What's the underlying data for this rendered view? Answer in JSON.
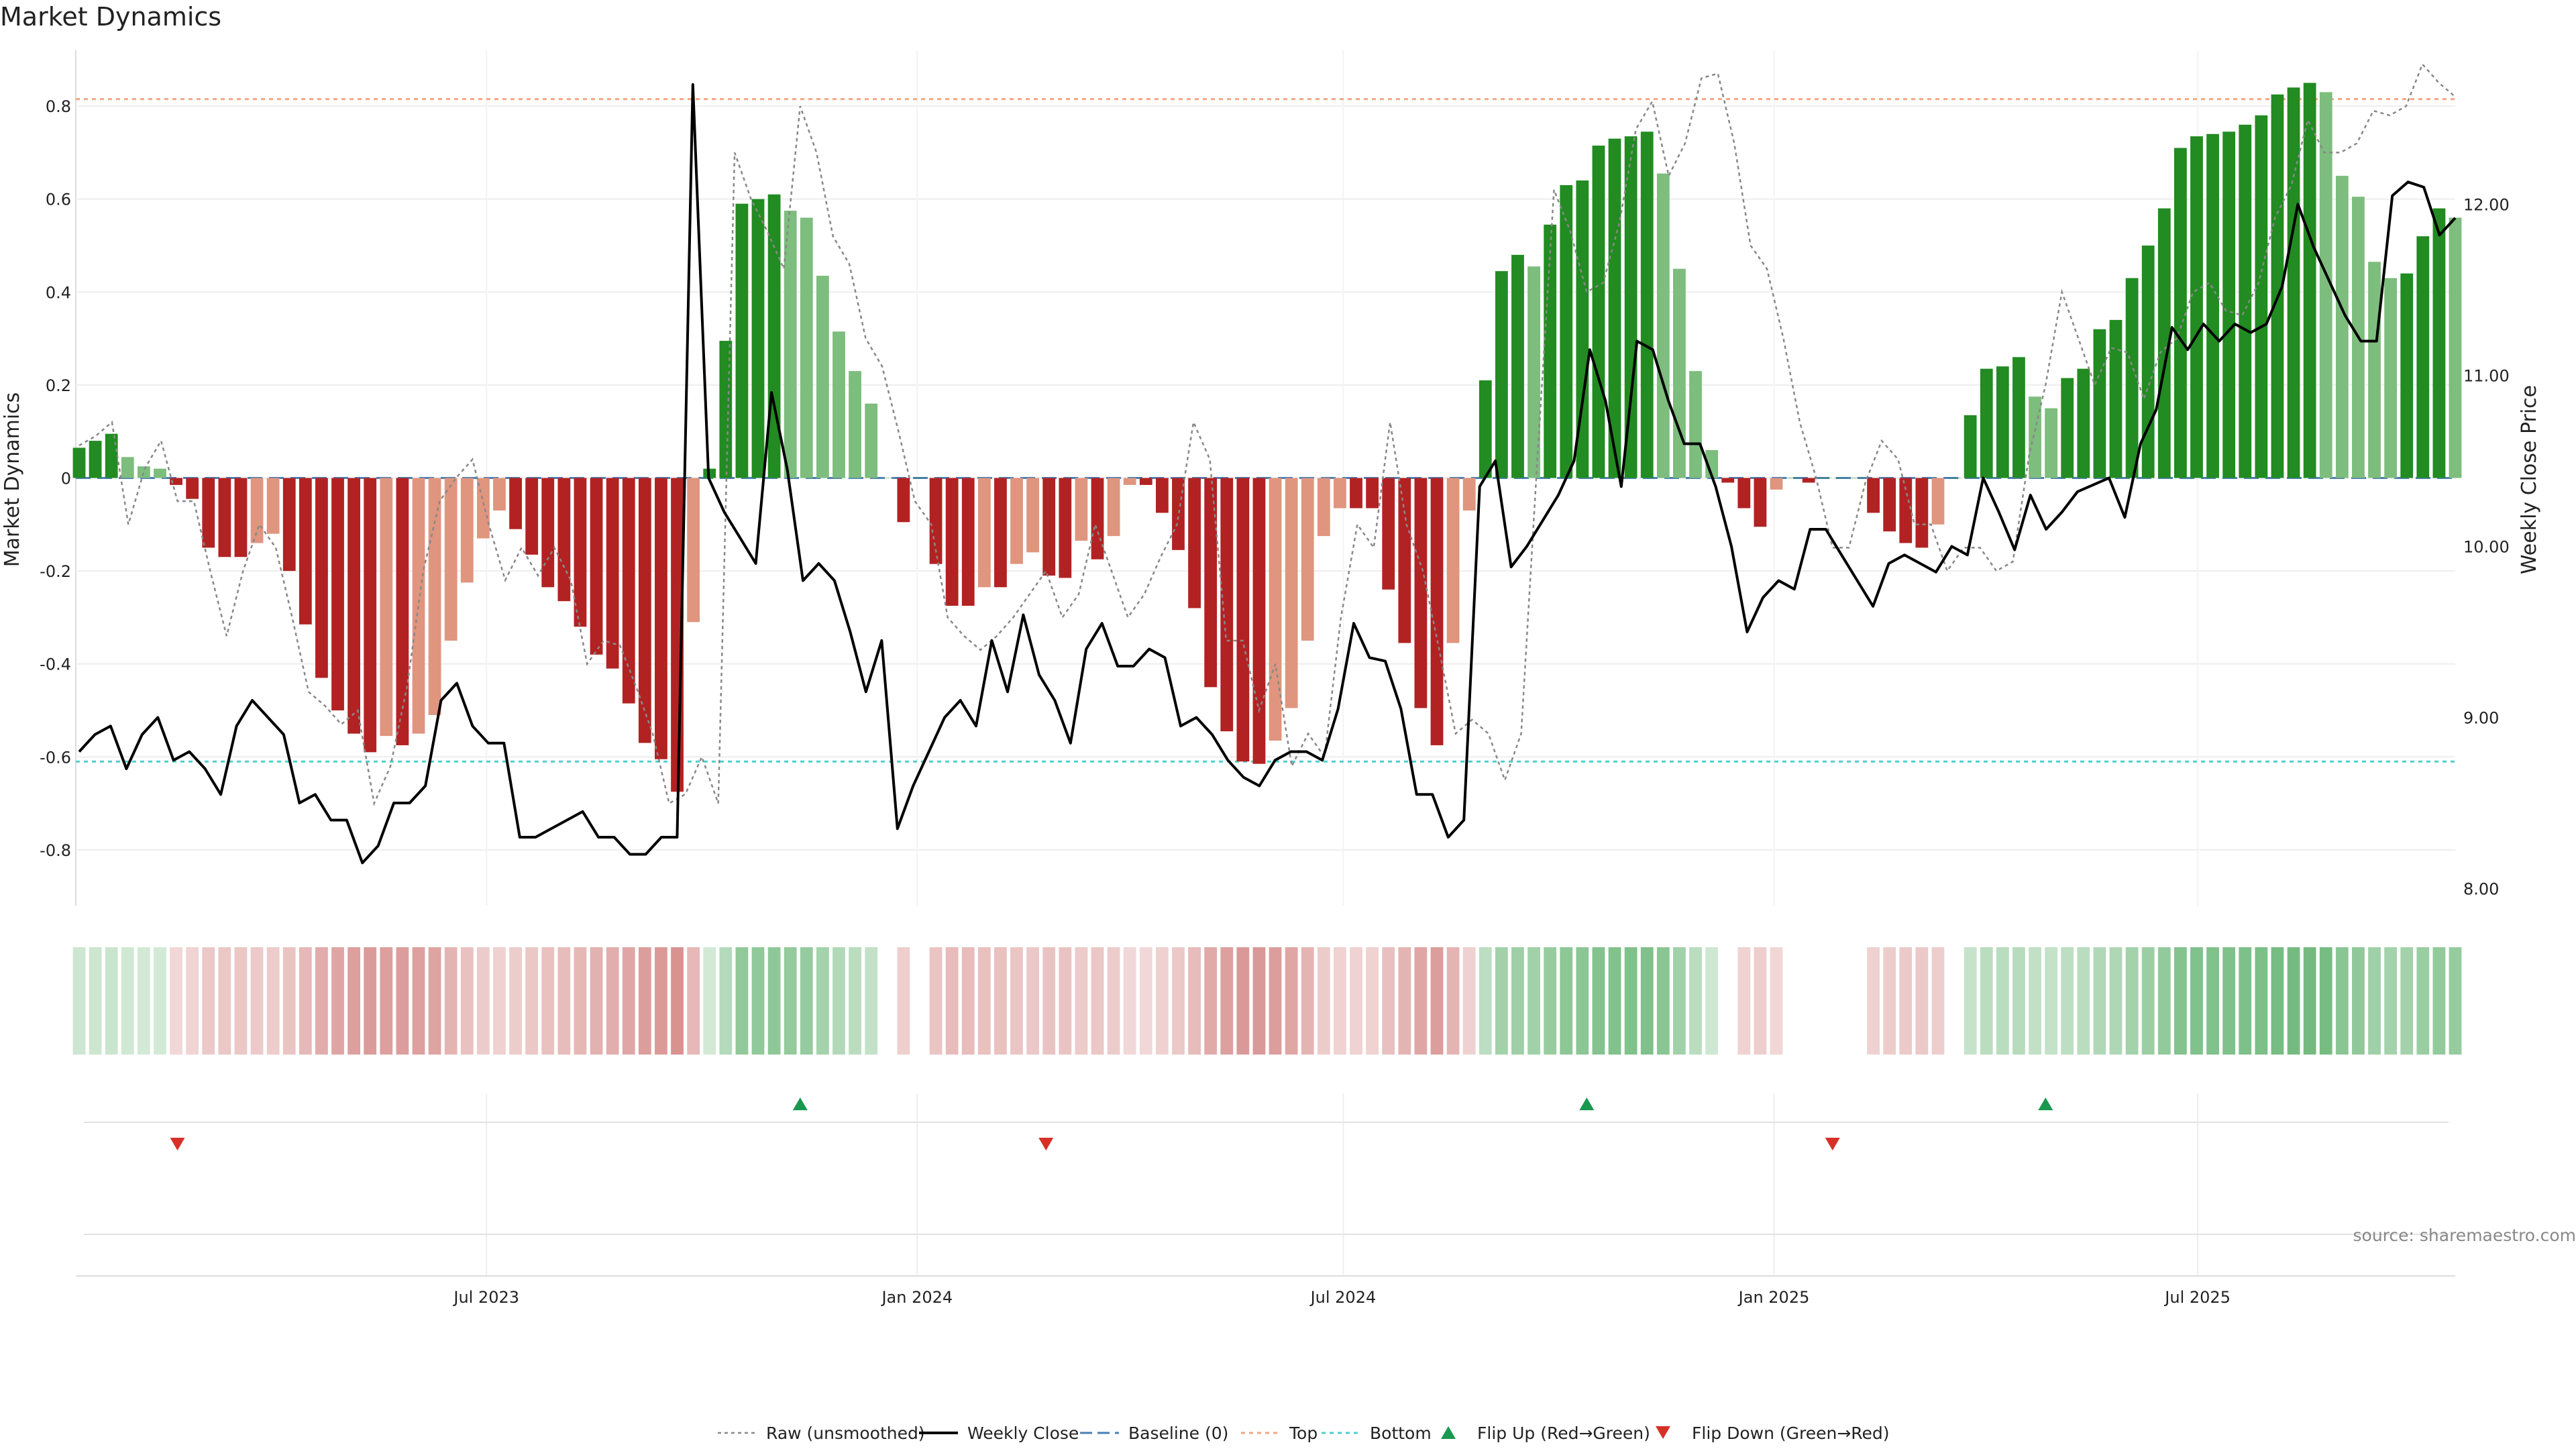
{
  "chart_data": {
    "type": "bar",
    "title": "Market Dynamics",
    "ylabel": "Market Dynamics",
    "y2label": "Weekly Close Price",
    "source": "source: sharemaestro.com",
    "ylim": [
      -0.92,
      0.92
    ],
    "y2lim": [
      7.9,
      12.9
    ],
    "yticks": [
      "0.8",
      "0.6",
      "0.4",
      "0.2",
      "0",
      "-0.2",
      "-0.4",
      "-0.6",
      "-0.8"
    ],
    "ytick_values": [
      0.8,
      0.6,
      0.4,
      0.2,
      0,
      -0.2,
      -0.4,
      -0.6,
      -0.8
    ],
    "y2ticks": [
      "12.00",
      "11.00",
      "10.00",
      "9.00",
      "8.00"
    ],
    "y2tick_values": [
      12,
      11,
      10,
      9,
      8
    ],
    "x_start": "2023-01-08",
    "x_end": "2025-10-19",
    "xticks": [
      {
        "label": "Jul 2023",
        "date": "2023-07-01"
      },
      {
        "label": "Jan 2024",
        "date": "2024-01-01"
      },
      {
        "label": "Jul 2024",
        "date": "2024-07-01"
      },
      {
        "label": "Jan 2025",
        "date": "2025-01-01"
      },
      {
        "label": "Jul 2025",
        "date": "2025-07-01"
      }
    ],
    "top_level": 0.815,
    "bottom_level": -0.61,
    "baseline": 0,
    "series": [
      {
        "name": "Raw (unsmoothed)",
        "style": "dotted",
        "color": "#888888",
        "values": [
          0.07,
          0.09,
          0.12,
          -0.1,
          0.02,
          0.08,
          -0.05,
          -0.05,
          -0.2,
          -0.34,
          -0.2,
          -0.1,
          -0.15,
          -0.3,
          -0.46,
          -0.49,
          -0.53,
          -0.5,
          -0.7,
          -0.62,
          -0.45,
          -0.2,
          -0.05,
          0,
          0.04,
          -0.1,
          -0.22,
          -0.15,
          -0.21,
          -0.15,
          -0.22,
          -0.4,
          -0.35,
          -0.36,
          -0.45,
          -0.55,
          -0.7,
          -0.68,
          -0.6,
          -0.7,
          0.7,
          0.6,
          0.53,
          0.45,
          0.8,
          0.7,
          0.52,
          0.46,
          0.3,
          0.24,
          0.1,
          -0.05,
          -0.1,
          -0.3,
          -0.34,
          -0.37,
          -0.34,
          -0.3,
          -0.25,
          -0.2,
          -0.3,
          -0.25,
          -0.1,
          -0.2,
          -0.3,
          -0.25,
          -0.17,
          -0.1,
          0.12,
          0.04,
          -0.35,
          -0.35,
          -0.5,
          -0.4,
          -0.62,
          -0.55,
          -0.6,
          -0.3,
          -0.1,
          -0.15,
          0.12,
          -0.1,
          -0.2,
          -0.37,
          -0.55,
          -0.52,
          -0.55,
          -0.65,
          -0.55,
          0.05,
          0.62,
          0.53,
          0.4,
          0.42,
          0.55,
          0.75,
          0.81,
          0.65,
          0.72,
          0.86,
          0.87,
          0.72,
          0.5,
          0.45,
          0.3,
          0.12,
          0,
          -0.15,
          -0.15,
          -0.01,
          0.08,
          0.04,
          -0.1,
          -0.1,
          -0.2,
          -0.15,
          -0.15,
          -0.2,
          -0.18,
          0.05,
          0.2,
          0.4,
          0.3,
          0.2,
          0.28,
          0.27,
          0.17,
          0.27,
          0.3,
          0.4,
          0.42,
          0.36,
          0.35,
          0.42,
          0.56,
          0.63,
          0.77,
          0.7,
          0.7,
          0.72,
          0.79,
          0.78,
          0.8,
          0.89,
          0.85,
          0.82
        ]
      },
      {
        "name": "Weekly Close",
        "style": "solid",
        "color": "#000000",
        "values": [
          8.8,
          8.9,
          8.95,
          8.7,
          8.9,
          9,
          8.75,
          8.8,
          8.7,
          8.55,
          8.95,
          9.1,
          9,
          8.9,
          8.5,
          8.55,
          8.4,
          8.4,
          8.15,
          8.25,
          8.5,
          8.5,
          8.6,
          9.1,
          9.2,
          8.95,
          8.85,
          8.85,
          8.3,
          8.3,
          8.35,
          8.4,
          8.45,
          8.3,
          8.3,
          8.2,
          8.2,
          8.3,
          8.3,
          12.7,
          10.4,
          10.2,
          10.05,
          9.9,
          10.9,
          10.45,
          9.8,
          9.9,
          9.8,
          9.5,
          9.15,
          9.45,
          8.35,
          8.6,
          8.8,
          9,
          9.1,
          8.95,
          9.45,
          9.15,
          9.6,
          9.25,
          9.1,
          8.85,
          9.4,
          9.55,
          9.3,
          9.3,
          9.4,
          9.35,
          8.95,
          9,
          8.9,
          8.75,
          8.65,
          8.6,
          8.75,
          8.8,
          8.8,
          8.75,
          9.05,
          9.55,
          9.35,
          9.33,
          9.05,
          8.55,
          8.55,
          8.3,
          8.4,
          10.35,
          10.5,
          9.88,
          10,
          10.15,
          10.3,
          10.5,
          11.15,
          10.85,
          10.35,
          11.2,
          11.15,
          10.85,
          10.6,
          10.6,
          10.35,
          10,
          9.5,
          9.7,
          9.8,
          9.75,
          10.1,
          10.1,
          9.95,
          9.8,
          9.65,
          9.9,
          9.95,
          9.9,
          9.85,
          10,
          9.95,
          10.4,
          10.2,
          9.98,
          10.3,
          10.1,
          10.2,
          10.32,
          10.36,
          10.4,
          10.17,
          10.6,
          10.8,
          11.28,
          11.15,
          11.3,
          11.2,
          11.3,
          11.25,
          11.3,
          11.52,
          12,
          11.75,
          11.55,
          11.35,
          11.2,
          11.2,
          12.05,
          12.13,
          12.1,
          11.82,
          11.92
        ]
      },
      {
        "name": "Baseline (0)",
        "style": "dashed",
        "color": "#4a7fb5"
      },
      {
        "name": "Top",
        "style": "dotted",
        "color": "#f4a582"
      },
      {
        "name": "Bottom",
        "style": "dotted",
        "color": "#4dd0d0"
      },
      {
        "name": "Flip Up (Red→Green)",
        "style": "marker-up",
        "color": "#1a9850"
      },
      {
        "name": "Flip Down (Green→Red)",
        "style": "marker-down",
        "color": "#d73027"
      }
    ],
    "bars": {
      "values": [
        0.065,
        0.08,
        0.095,
        0.045,
        0.025,
        0.02,
        -0.015,
        -0.045,
        -0.15,
        -0.17,
        -0.17,
        -0.14,
        -0.12,
        -0.2,
        -0.315,
        -0.43,
        -0.5,
        -0.55,
        -0.59,
        -0.555,
        -0.575,
        -0.55,
        -0.51,
        -0.35,
        -0.225,
        -0.13,
        -0.07,
        -0.11,
        -0.165,
        -0.235,
        -0.265,
        -0.32,
        -0.38,
        -0.41,
        -0.485,
        -0.57,
        -0.605,
        -0.675,
        -0.31,
        0.02,
        0.295,
        0.59,
        0.6,
        0.61,
        0.575,
        0.56,
        0.435,
        0.315,
        0.23,
        0.16,
        0,
        -0.095,
        0,
        -0.185,
        -0.275,
        -0.275,
        -0.235,
        -0.235,
        -0.185,
        -0.16,
        -0.21,
        -0.215,
        -0.135,
        -0.175,
        -0.125,
        -0.015,
        -0.015,
        -0.075,
        -0.155,
        -0.28,
        -0.45,
        -0.545,
        -0.61,
        -0.615,
        -0.565,
        -0.495,
        -0.35,
        -0.125,
        -0.065,
        -0.065,
        -0.065,
        -0.24,
        -0.355,
        -0.495,
        -0.575,
        -0.355,
        -0.07,
        0.21,
        0.445,
        0.48,
        0.455,
        0.545,
        0.63,
        0.64,
        0.715,
        0.73,
        0.735,
        0.745,
        0.655,
        0.45,
        0.23,
        0.06,
        -0.01,
        -0.065,
        -0.105,
        -0.025,
        0,
        -0.01,
        0,
        0,
        0,
        -0.075,
        -0.115,
        -0.14,
        -0.15,
        -0.1,
        0,
        0.135,
        0.235,
        0.24,
        0.26,
        0.175,
        0.15,
        0.215,
        0.235,
        0.32,
        0.34,
        0.43,
        0.5,
        0.58,
        0.71,
        0.735,
        0.74,
        0.745,
        0.76,
        0.78,
        0.825,
        0.84,
        0.85,
        0.83,
        0.65,
        0.605,
        0.465,
        0.43,
        0.44,
        0.52,
        0.58,
        0.56
      ],
      "colors": {
        "up": "#228b22",
        "up_fading": "#7dbd7d",
        "down": "#b22222",
        "down_fading": "#e0957e"
      }
    },
    "strip": {
      "green": "#3ea04e",
      "red": "#c0504d"
    },
    "flips": {
      "up_dates": [
        "2023-11-12",
        "2024-10-13",
        "2025-04-27"
      ],
      "down_dates": [
        "2023-02-19",
        "2024-02-25",
        "2025-01-26"
      ]
    }
  }
}
